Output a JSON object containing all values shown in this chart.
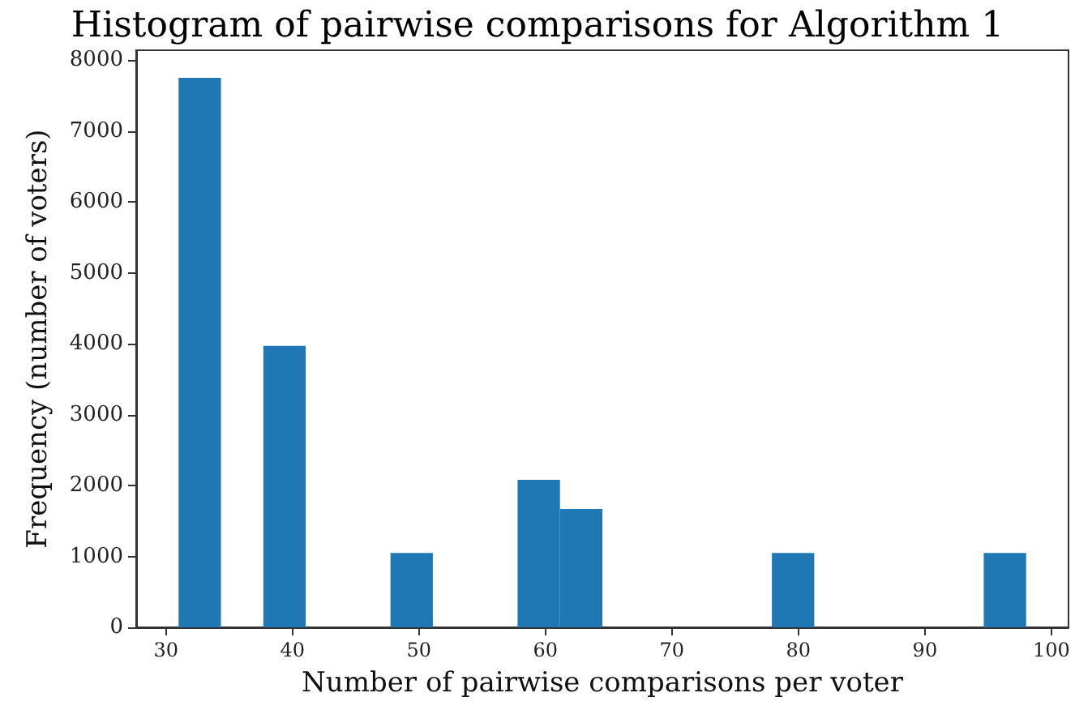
{
  "chart_data": {
    "type": "histogram",
    "title": "Histogram of pairwise comparisons for Algorithm 1",
    "xlabel": "Number of pairwise comparisons per voter",
    "ylabel": "Frequency (number of voters)",
    "bins": [
      31,
      34.35,
      37.7,
      41.05,
      44.4,
      47.75,
      51.1,
      54.45,
      57.8,
      61.15,
      64.5,
      67.85,
      71.2,
      74.55,
      77.9,
      81.25,
      84.6,
      87.95,
      91.3,
      94.65,
      98
    ],
    "values": [
      7750,
      0,
      3970,
      0,
      0,
      1050,
      0,
      0,
      2080,
      1670,
      0,
      0,
      0,
      0,
      1050,
      0,
      0,
      0,
      0,
      1050
    ],
    "color": "#1f77b4",
    "xlim": [
      27.65,
      101.35
    ],
    "xticks": [
      30,
      40,
      50,
      60,
      70,
      80,
      90,
      100
    ],
    "ylim": [
      0,
      8140
    ],
    "yticks": [
      0,
      1000,
      2000,
      3000,
      4000,
      5000,
      6000,
      7000,
      8000
    ],
    "grid": false
  }
}
